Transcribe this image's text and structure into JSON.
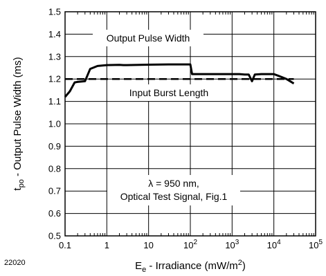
{
  "chart_data": {
    "type": "line",
    "figure_id": "22020",
    "xlabel": {
      "main": "E",
      "sub": "e",
      "rest": " - Irradiance (mW/m",
      "sup": "2",
      "end": ")"
    },
    "ylabel": {
      "main": "t",
      "sub": "po",
      "rest": " - Output Pulse Width (ms)"
    },
    "x_scale": "log",
    "xlim": [
      0.1,
      100000
    ],
    "ylim": [
      0.5,
      1.5
    ],
    "x_ticks": [
      {
        "value": 0.1,
        "base": "0.1",
        "exp": ""
      },
      {
        "value": 1,
        "base": "1",
        "exp": ""
      },
      {
        "value": 10,
        "base": "10",
        "exp": ""
      },
      {
        "value": 100,
        "base": "10",
        "exp": "2"
      },
      {
        "value": 1000,
        "base": "10",
        "exp": "3"
      },
      {
        "value": 10000,
        "base": "10",
        "exp": "4"
      },
      {
        "value": 100000,
        "base": "10",
        "exp": "5"
      }
    ],
    "y_ticks": [
      "0.5",
      "0.6",
      "0.7",
      "0.8",
      "0.9",
      "1.0",
      "1.1",
      "1.2",
      "1.3",
      "1.4",
      "1.5"
    ],
    "grid": true,
    "annotations": {
      "output_label": "Output Pulse Width",
      "input_label": "Input Burst Length",
      "cond_line1": "λ = 950 nm,",
      "cond_line2": "Optical Test Signal, Fig.1"
    },
    "series": [
      {
        "name": "Output Pulse Width",
        "style": "solid",
        "x": [
          0.1,
          0.13,
          0.17,
          0.2,
          0.3,
          0.4,
          0.6,
          1,
          2,
          2.5,
          3,
          10,
          30,
          70,
          100,
          110,
          500,
          1500,
          2000,
          2500,
          3000,
          3500,
          5000,
          10000,
          13000,
          20000,
          30000
        ],
        "y": [
          1.12,
          1.145,
          1.185,
          1.187,
          1.19,
          1.245,
          1.258,
          1.262,
          1.263,
          1.262,
          1.262,
          1.264,
          1.265,
          1.265,
          1.265,
          1.222,
          1.222,
          1.222,
          1.22,
          1.22,
          1.19,
          1.22,
          1.222,
          1.222,
          1.214,
          1.2,
          1.18
        ]
      },
      {
        "name": "Input Burst Length",
        "style": "dashed",
        "x": [
          0.1,
          30000
        ],
        "y": [
          1.2,
          1.2
        ]
      }
    ]
  }
}
